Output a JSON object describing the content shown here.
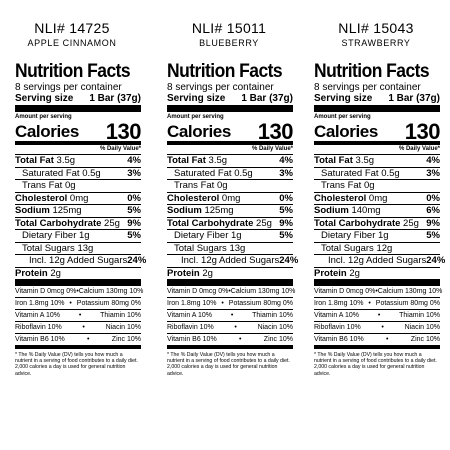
{
  "panels": [
    {
      "nli": "NLI# 14725",
      "flavor": "APPLE CINNAMON",
      "title": "Nutrition Facts",
      "servings": "8 servings per container",
      "serving_size_label": "Serving size",
      "serving_size_value": "1 Bar (37g)",
      "amount_per_serving": "Amount per serving",
      "calories_label": "Calories",
      "calories_value": "130",
      "daily_value_header": "% Daily Value*",
      "total_fat_label": "Total Fat",
      "total_fat_amount": "3.5g",
      "total_fat_dv": "4%",
      "sat_fat_label": "Saturated Fat",
      "sat_fat_amount": "0.5g",
      "sat_fat_dv": "3%",
      "trans_fat_label": "Trans Fat",
      "trans_fat_amount": "0g",
      "cholesterol_label": "Cholesterol",
      "cholesterol_amount": "0mg",
      "cholesterol_dv": "0%",
      "sodium_label": "Sodium",
      "sodium_amount": "125mg",
      "sodium_dv": "5%",
      "carb_label": "Total Carbohydrate",
      "carb_amount": "25g",
      "carb_dv": "9%",
      "fiber_label": "Dietary Fiber",
      "fiber_amount": "1g",
      "fiber_dv": "5%",
      "sugars_label": "Total Sugars",
      "sugars_amount": "13g",
      "added_sugars_text": "Incl. 12g Added Sugars",
      "added_sugars_dv": "24%",
      "protein_label": "Protein",
      "protein_amount": "2g",
      "vit_rows": [
        [
          "Vitamin D 0mcg 0%",
          "Calcium 130mg 10%"
        ],
        [
          "Iron 1.8mg 10%",
          "Potassium 80mg 0%"
        ],
        [
          "Vitamin A 10%",
          "Thiamin 10%"
        ],
        [
          "Riboflavin 10%",
          "Niacin 10%"
        ],
        [
          "Vitamin B6 10%",
          "Zinc 10%"
        ]
      ],
      "footnote": "* The % Daily Value (DV) tells you how much a nutrient in a serving of food contributes to a daily diet. 2,000 calories a day is used for general nutrition advice."
    },
    {
      "nli": "NLI# 15011",
      "flavor": "BLUEBERRY",
      "title": "Nutrition Facts",
      "servings": "8 servings per container",
      "serving_size_label": "Serving size",
      "serving_size_value": "1 Bar (37g)",
      "amount_per_serving": "Amount per serving",
      "calories_label": "Calories",
      "calories_value": "130",
      "daily_value_header": "% Daily Value*",
      "total_fat_label": "Total Fat",
      "total_fat_amount": "3.5g",
      "total_fat_dv": "4%",
      "sat_fat_label": "Saturated Fat",
      "sat_fat_amount": "0.5g",
      "sat_fat_dv": "3%",
      "trans_fat_label": "Trans Fat",
      "trans_fat_amount": "0g",
      "cholesterol_label": "Cholesterol",
      "cholesterol_amount": "0mg",
      "cholesterol_dv": "0%",
      "sodium_label": "Sodium",
      "sodium_amount": "125mg",
      "sodium_dv": "5%",
      "carb_label": "Total Carbohydrate",
      "carb_amount": "25g",
      "carb_dv": "9%",
      "fiber_label": "Dietary Fiber",
      "fiber_amount": "1g",
      "fiber_dv": "5%",
      "sugars_label": "Total Sugars",
      "sugars_amount": "13g",
      "added_sugars_text": "Incl. 12g Added Sugars",
      "added_sugars_dv": "24%",
      "protein_label": "Protein",
      "protein_amount": "2g",
      "vit_rows": [
        [
          "Vitamin D 0mcg 0%",
          "Calcium 130mg 10%"
        ],
        [
          "Iron 1.8mg 10%",
          "Potassium 80mg 0%"
        ],
        [
          "Vitamin A 10%",
          "Thiamin 10%"
        ],
        [
          "Riboflavin 10%",
          "Niacin 10%"
        ],
        [
          "Vitamin B6 10%",
          "Zinc 10%"
        ]
      ],
      "footnote": "* The % Daily Value (DV) tells you how much a nutrient in a serving of food contributes to a daily diet. 2,000 calories a day is used for general nutrition advice."
    },
    {
      "nli": "NLI# 15043",
      "flavor": "STRAWBERRY",
      "title": "Nutrition Facts",
      "servings": "8 servings per container",
      "serving_size_label": "Serving size",
      "serving_size_value": "1 Bar (37g)",
      "amount_per_serving": "Amount per serving",
      "calories_label": "Calories",
      "calories_value": "130",
      "daily_value_header": "% Daily Value*",
      "total_fat_label": "Total Fat",
      "total_fat_amount": "3.5g",
      "total_fat_dv": "4%",
      "sat_fat_label": "Saturated Fat",
      "sat_fat_amount": "0.5g",
      "sat_fat_dv": "3%",
      "trans_fat_label": "Trans Fat",
      "trans_fat_amount": "0g",
      "cholesterol_label": "Cholesterol",
      "cholesterol_amount": "0mg",
      "cholesterol_dv": "0%",
      "sodium_label": "Sodium",
      "sodium_amount": "140mg",
      "sodium_dv": "6%",
      "carb_label": "Total Carbohydrate",
      "carb_amount": "25g",
      "carb_dv": "9%",
      "fiber_label": "Dietary Fiber",
      "fiber_amount": "1g",
      "fiber_dv": "5%",
      "sugars_label": "Total Sugars",
      "sugars_amount": "12g",
      "added_sugars_text": "Incl. 12g Added Sugars",
      "added_sugars_dv": "24%",
      "protein_label": "Protein",
      "protein_amount": "2g",
      "vit_rows": [
        [
          "Vitamin D 0mcg 0%",
          "Calcium 130mg 10%"
        ],
        [
          "Iron 1.8mg 10%",
          "Potassium 80mg 0%"
        ],
        [
          "Vitamin A 10%",
          "Thiamin 10%"
        ],
        [
          "Riboflavin 10%",
          "Niacin 10%"
        ],
        [
          "Vitamin B6 10%",
          "Zinc 10%"
        ]
      ],
      "footnote": "* The % Daily Value (DV) tells you how much a nutrient in a serving of food contributes to a daily diet. 2,000 calories a day is used for general nutrition advice."
    }
  ]
}
